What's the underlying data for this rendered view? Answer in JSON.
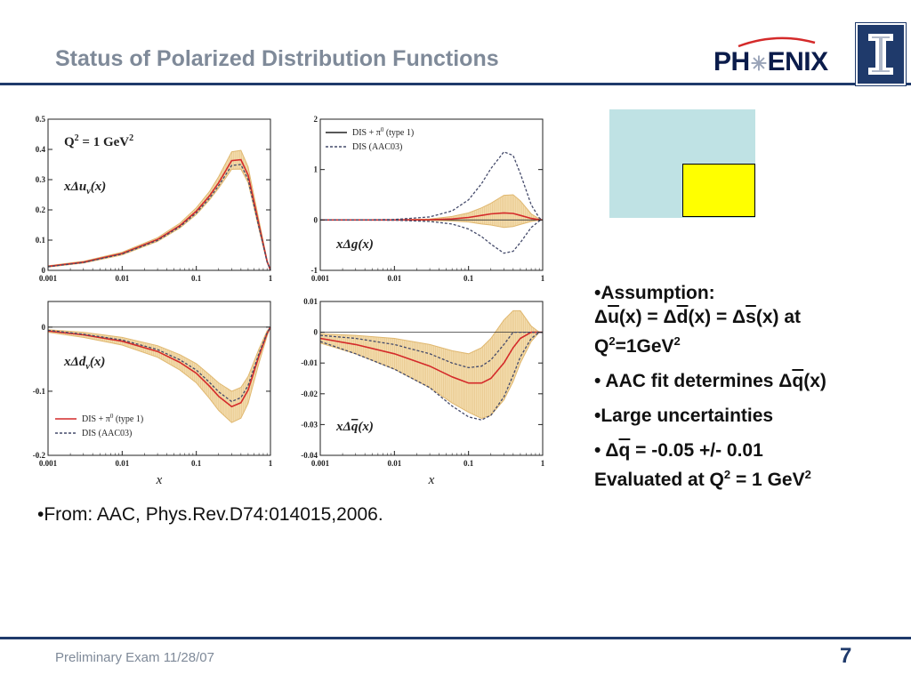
{
  "slide": {
    "title": "Status of Polarized Distribution Functions",
    "footer": "Preliminary Exam 11/28/07",
    "page_number": "7",
    "logo_text_left": "PH",
    "logo_text_right": "ENIX",
    "source_note": "•From: AAC, Phys.Rev.D74:014015,2006."
  },
  "bullets": {
    "b1_title": "•Assumption:",
    "b1_eq_a": "Δ",
    "b1_eq_u": "u",
    "b1_eq_b": "(x) = Δ",
    "b1_eq_d": "d",
    "b1_eq_c": "(x) = Δ",
    "b1_eq_s": "s",
    "b1_eq_e": "(x) at",
    "b1_q": "Q",
    "b1_q_sup": "2",
    "b1_q_rest": "=1GeV",
    "b1_q_sup2": "2",
    "b2_a": "• AAC fit determines Δ",
    "b2_q": "q",
    "b2_b": "(x)",
    "b3": "•Large uncertainties",
    "b4_a": "• Δ",
    "b4_q": "q",
    "b4_b": " = -0.05 +/- 0.01",
    "b4_c": "Evaluated at Q",
    "b4_sup": "2",
    "b4_d": " = 1 GeV",
    "b4_sup2": "2"
  },
  "colors": {
    "accent_navy": "#1f3a6b",
    "title_gray": "#7f8a99",
    "band_fill": "#f3dcae",
    "band_line": "#e0b870",
    "curve_red": "#d42a2a",
    "curve_dash": "#444a6a",
    "box_cyan": "#bfe2e4",
    "box_yellow": "#ffff00"
  },
  "chart_data": [
    {
      "id": "xdu",
      "type": "line",
      "x_scale": "log",
      "xlim": [
        0.001,
        1
      ],
      "ylim": [
        0,
        0.5
      ],
      "x_ticks": [
        0.001,
        0.01,
        0.1,
        1
      ],
      "x_tick_labels": [
        "0.001",
        "0.01",
        "0.1",
        "1"
      ],
      "y_ticks": [
        0,
        0.1,
        0.2,
        0.3,
        0.4,
        0.5
      ],
      "y_tick_labels": [
        "0",
        "0.1",
        "0.2",
        "0.3",
        "0.4",
        "0.5"
      ],
      "xlabel": "",
      "label": "xΔu",
      "label_sub": "v",
      "label_tail": "(x)",
      "extra_label": "Q",
      "extra_label_sup": "2",
      "extra_label_tail": " = 1 GeV",
      "extra_label_sup2": "2",
      "x": [
        0.001,
        0.003,
        0.01,
        0.03,
        0.06,
        0.1,
        0.15,
        0.2,
        0.3,
        0.4,
        0.5,
        0.7,
        0.9,
        1.0
      ],
      "series": [
        {
          "name": "DIS + π⁰ (type 1)",
          "style": "solid",
          "values": [
            0.013,
            0.027,
            0.056,
            0.102,
            0.148,
            0.196,
            0.246,
            0.29,
            0.363,
            0.366,
            0.315,
            0.15,
            0.03,
            0.0
          ]
        },
        {
          "name": "DIS (AAC03)",
          "style": "dashed",
          "values": [
            0.012,
            0.026,
            0.054,
            0.099,
            0.144,
            0.19,
            0.238,
            0.28,
            0.347,
            0.35,
            0.3,
            0.142,
            0.028,
            0.0
          ]
        }
      ],
      "band_upper": [
        0.015,
        0.03,
        0.06,
        0.108,
        0.156,
        0.207,
        0.26,
        0.31,
        0.392,
        0.397,
        0.342,
        0.165,
        0.035,
        0.0
      ],
      "band_lower": [
        0.011,
        0.024,
        0.051,
        0.096,
        0.14,
        0.185,
        0.232,
        0.272,
        0.334,
        0.335,
        0.29,
        0.136,
        0.026,
        0.0
      ]
    },
    {
      "id": "xdg",
      "type": "line",
      "x_scale": "log",
      "xlim": [
        0.001,
        1
      ],
      "ylim": [
        -1,
        2
      ],
      "x_ticks": [
        0.001,
        0.01,
        0.1,
        1
      ],
      "x_tick_labels": [
        "0.001",
        "0.01",
        "0.1",
        "1"
      ],
      "y_ticks": [
        -1,
        0,
        1,
        2
      ],
      "y_tick_labels": [
        "-1",
        "0",
        "1",
        "2"
      ],
      "xlabel": "",
      "label": "xΔg(x)",
      "legend": [
        {
          "name": "DIS + π",
          "sup": "0",
          "tail": " (type 1)",
          "style": "solid"
        },
        {
          "name": "DIS (AAC03)",
          "sup": "",
          "tail": "",
          "style": "dashed"
        }
      ],
      "x": [
        0.001,
        0.003,
        0.01,
        0.03,
        0.06,
        0.1,
        0.15,
        0.2,
        0.3,
        0.4,
        0.5,
        0.7,
        0.9,
        1.0
      ],
      "series": [
        {
          "name": "DIS + π⁰ (type 1)",
          "style": "solid",
          "values": [
            0.0,
            0.0,
            0.0,
            0.005,
            0.02,
            0.05,
            0.09,
            0.12,
            0.14,
            0.13,
            0.09,
            0.03,
            0.005,
            0.0
          ]
        },
        {
          "name": "DIS (AAC03) upper",
          "style": "dashed",
          "values": [
            0.0,
            0.0,
            0.01,
            0.06,
            0.18,
            0.4,
            0.72,
            1.02,
            1.35,
            1.28,
            0.92,
            0.3,
            0.04,
            0.0
          ]
        },
        {
          "name": "DIS (AAC03) lower",
          "style": "dashed",
          "values": [
            0.0,
            0.0,
            -0.005,
            -0.03,
            -0.08,
            -0.18,
            -0.33,
            -0.48,
            -0.66,
            -0.62,
            -0.45,
            -0.15,
            -0.02,
            0.0
          ]
        }
      ],
      "band_upper": [
        0.0,
        0.0,
        0.005,
        0.02,
        0.07,
        0.14,
        0.24,
        0.33,
        0.49,
        0.5,
        0.38,
        0.12,
        0.02,
        0.0
      ],
      "band_lower": [
        0.0,
        0.0,
        -0.003,
        -0.01,
        -0.02,
        -0.04,
        -0.08,
        -0.1,
        -0.15,
        -0.13,
        -0.09,
        -0.03,
        -0.005,
        0.0
      ]
    },
    {
      "id": "xdd",
      "type": "line",
      "x_scale": "log",
      "xlim": [
        0.001,
        1
      ],
      "ylim": [
        -0.2,
        0.04
      ],
      "x_ticks": [
        0.001,
        0.01,
        0.1,
        1
      ],
      "x_tick_labels": [
        "0.001",
        "0.01",
        "0.1",
        "1"
      ],
      "y_ticks": [
        -0.2,
        -0.1,
        0
      ],
      "y_tick_labels": [
        "-0.2",
        "-0.1",
        "0"
      ],
      "xlabel": "x",
      "label": "xΔd",
      "label_sub": "v",
      "label_tail": "(x)",
      "legend": [
        {
          "name": "DIS + π",
          "sup": "0",
          "tail": " (type 1)",
          "style": "solid"
        },
        {
          "name": "DIS (AAC03)",
          "sup": "",
          "tail": "",
          "style": "dashed"
        }
      ],
      "x": [
        0.001,
        0.003,
        0.01,
        0.03,
        0.06,
        0.1,
        0.15,
        0.2,
        0.3,
        0.4,
        0.5,
        0.7,
        0.9,
        1.0
      ],
      "series": [
        {
          "name": "DIS + π⁰ (type 1)",
          "style": "solid",
          "values": [
            -0.006,
            -0.012,
            -0.022,
            -0.038,
            -0.055,
            -0.072,
            -0.092,
            -0.108,
            -0.124,
            -0.118,
            -0.098,
            -0.045,
            -0.01,
            0.0
          ]
        },
        {
          "name": "DIS (AAC03)",
          "style": "dashed",
          "values": [
            -0.005,
            -0.011,
            -0.02,
            -0.035,
            -0.051,
            -0.067,
            -0.086,
            -0.101,
            -0.116,
            -0.11,
            -0.091,
            -0.041,
            -0.009,
            0.0
          ]
        }
      ],
      "band_upper": [
        -0.004,
        -0.008,
        -0.016,
        -0.029,
        -0.043,
        -0.057,
        -0.074,
        -0.087,
        -0.1,
        -0.094,
        -0.077,
        -0.034,
        -0.006,
        0.0
      ],
      "band_lower": [
        -0.008,
        -0.016,
        -0.028,
        -0.047,
        -0.067,
        -0.087,
        -0.111,
        -0.13,
        -0.149,
        -0.142,
        -0.119,
        -0.056,
        -0.014,
        0.0
      ]
    },
    {
      "id": "xdqbar",
      "type": "line",
      "x_scale": "log",
      "xlim": [
        0.001,
        1
      ],
      "ylim": [
        -0.04,
        0.01
      ],
      "x_ticks": [
        0.001,
        0.01,
        0.1,
        1
      ],
      "x_tick_labels": [
        "0.001",
        "0.01",
        "0.1",
        "1"
      ],
      "y_ticks": [
        -0.04,
        -0.03,
        -0.02,
        -0.01,
        0,
        0.01
      ],
      "y_tick_labels": [
        "-0.04",
        "-0.03",
        "-0.02",
        "-0.01",
        "0",
        "0.01"
      ],
      "xlabel": "x",
      "label": "xΔ",
      "label_ov": "q",
      "label_tail": "(x)",
      "x": [
        0.001,
        0.003,
        0.01,
        0.03,
        0.06,
        0.1,
        0.15,
        0.2,
        0.3,
        0.4,
        0.5,
        0.7,
        0.9,
        1.0
      ],
      "series": [
        {
          "name": "DIS + π⁰ (type 1)",
          "style": "solid",
          "values": [
            -0.002,
            -0.004,
            -0.007,
            -0.011,
            -0.0145,
            -0.0165,
            -0.0165,
            -0.015,
            -0.01,
            -0.005,
            -0.002,
            0.0,
            0.0,
            0.0
          ]
        },
        {
          "name": "DIS (AAC03) upper",
          "style": "dashed",
          "values": [
            -0.001,
            -0.002,
            -0.004,
            -0.007,
            -0.01,
            -0.0115,
            -0.011,
            -0.009,
            -0.004,
            0.0,
            0.0,
            0.0,
            0.0,
            0.0
          ]
        },
        {
          "name": "DIS (AAC03) lower",
          "style": "dashed",
          "values": [
            -0.003,
            -0.007,
            -0.012,
            -0.018,
            -0.024,
            -0.0275,
            -0.0285,
            -0.027,
            -0.021,
            -0.014,
            -0.008,
            -0.002,
            0.0,
            0.0
          ]
        }
      ],
      "band_upper": [
        -0.0005,
        -0.001,
        -0.002,
        -0.004,
        -0.006,
        -0.007,
        -0.005,
        -0.002,
        0.004,
        0.007,
        0.007,
        0.002,
        0.0,
        0.0
      ],
      "band_lower": [
        -0.0035,
        -0.007,
        -0.012,
        -0.018,
        -0.023,
        -0.026,
        -0.028,
        -0.027,
        -0.022,
        -0.016,
        -0.01,
        -0.003,
        0.0,
        0.0
      ]
    }
  ]
}
